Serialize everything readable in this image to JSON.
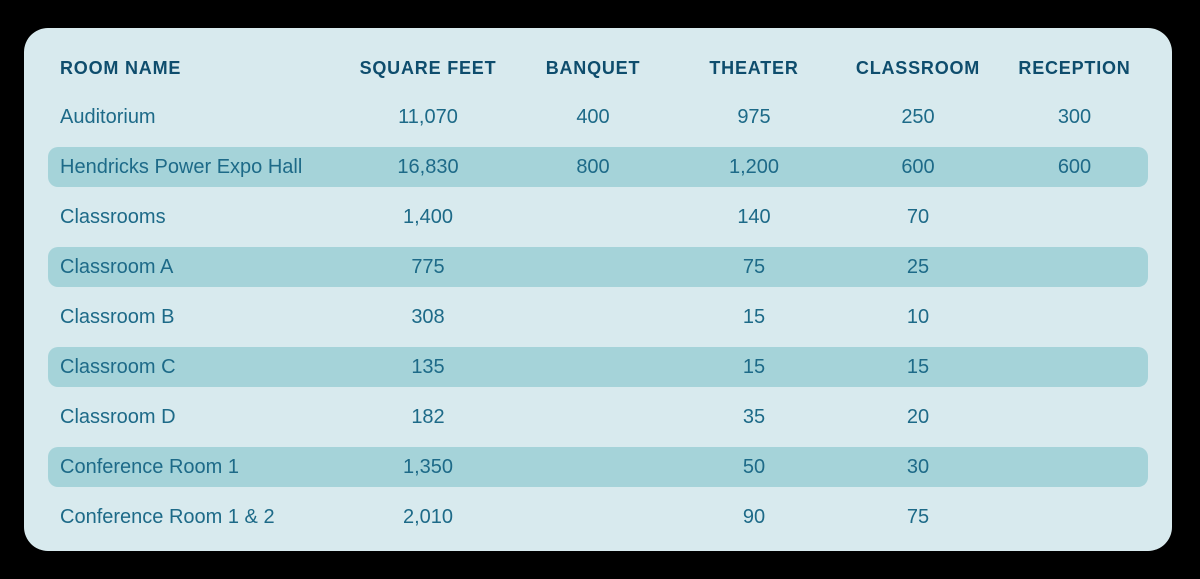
{
  "colors": {
    "page_background": "#000000",
    "panel_background": "#d8eaee",
    "row_highlight": "#a5d3d9",
    "header_text": "#0e4d6d",
    "body_text": "#1d6a88"
  },
  "chart_data": {
    "type": "table",
    "title": "",
    "columns": [
      "ROOM NAME",
      "SQUARE FEET",
      "BANQUET",
      "THEATER",
      "CLASSROOM",
      "RECEPTION"
    ],
    "rows": [
      {
        "highlighted": false,
        "cells": [
          "Auditorium",
          "11,070",
          "400",
          "975",
          "250",
          "300"
        ]
      },
      {
        "highlighted": true,
        "cells": [
          "Hendricks Power Expo Hall",
          "16,830",
          "800",
          "1,200",
          "600",
          "600"
        ]
      },
      {
        "highlighted": false,
        "cells": [
          "Classrooms",
          "1,400",
          "",
          "140",
          "70",
          ""
        ]
      },
      {
        "highlighted": true,
        "cells": [
          "Classroom A",
          "775",
          "",
          "75",
          "25",
          ""
        ]
      },
      {
        "highlighted": false,
        "cells": [
          "Classroom B",
          "308",
          "",
          "15",
          "10",
          ""
        ]
      },
      {
        "highlighted": true,
        "cells": [
          "Classroom C",
          "135",
          "",
          "15",
          "15",
          ""
        ]
      },
      {
        "highlighted": false,
        "cells": [
          "Classroom D",
          "182",
          "",
          "35",
          "20",
          ""
        ]
      },
      {
        "highlighted": true,
        "cells": [
          "Conference Room 1",
          "1,350",
          "",
          "50",
          "30",
          ""
        ]
      },
      {
        "highlighted": false,
        "cells": [
          "Conference Room 1 & 2",
          "2,010",
          "",
          "90",
          "75",
          ""
        ]
      }
    ],
    "layout": {
      "grid": false,
      "striping": "alternating rows highlighted starting at row 2",
      "first_column_align": "left",
      "value_columns_align": "center"
    }
  }
}
